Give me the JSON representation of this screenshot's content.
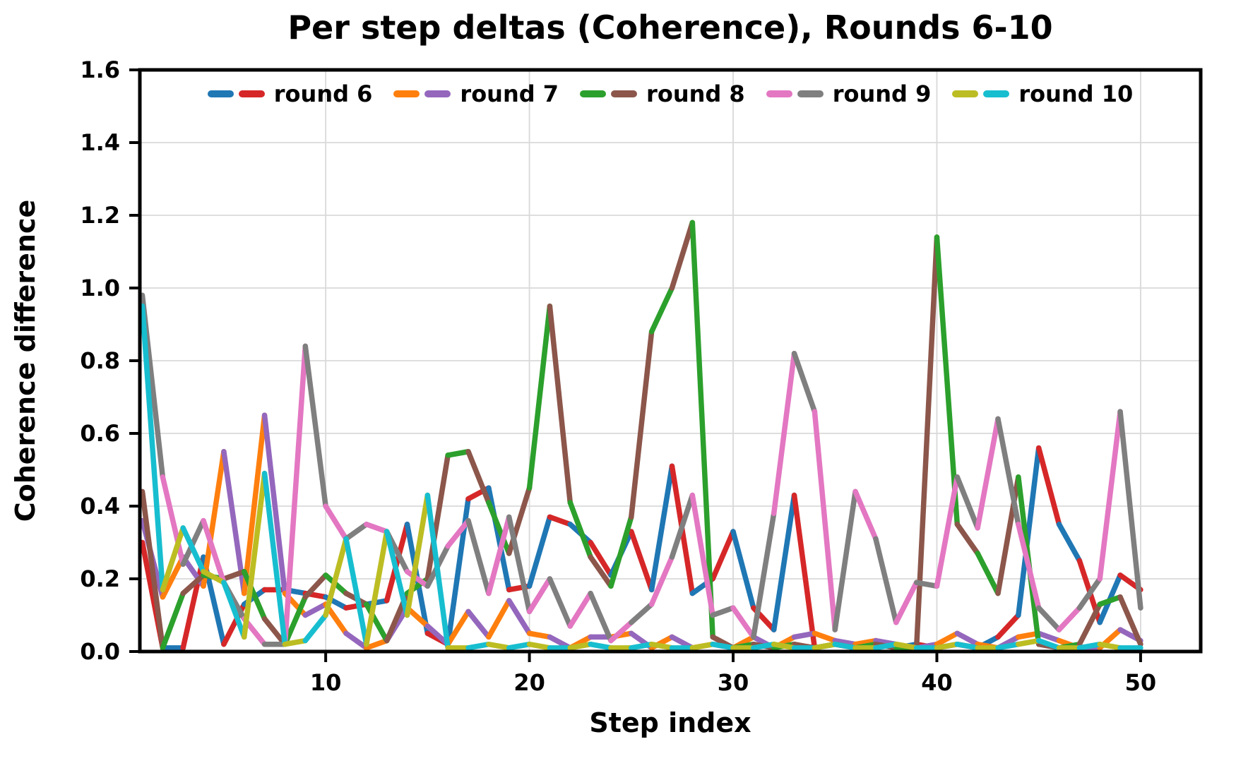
{
  "figure": {
    "background": "#ffffff",
    "text_color": "#000000",
    "grid_color": "#d9d9d9",
    "spine_color": "#000000"
  },
  "chart_data": {
    "type": "line",
    "title": "Per step deltas (Coherence), Rounds 6-10",
    "xlabel": "Step index",
    "ylabel": "Coherence difference",
    "xlim": [
      0.878,
      52.95
    ],
    "ylim": [
      0,
      1.6
    ],
    "xticks": [
      10,
      20,
      30,
      40,
      50
    ],
    "yticks": [
      0.0,
      0.2,
      0.4,
      0.6,
      0.8,
      1.0,
      1.2,
      1.4,
      1.6
    ],
    "grid": true,
    "legend_position": "top-center",
    "style": "each series is one polyline whose segments alternate between its two colors",
    "x": [
      1,
      2,
      3,
      4,
      5,
      6,
      7,
      8,
      9,
      10,
      11,
      12,
      13,
      14,
      15,
      16,
      17,
      18,
      19,
      20,
      21,
      22,
      23,
      24,
      25,
      26,
      27,
      28,
      29,
      30,
      31,
      32,
      33,
      34,
      35,
      36,
      37,
      38,
      39,
      40,
      41,
      42,
      43,
      44,
      45,
      46,
      47,
      48,
      49,
      50
    ],
    "series": [
      {
        "name": "round 6",
        "colors": [
          "#1f77b4",
          "#d62728"
        ],
        "values": [
          0.3,
          0.01,
          0.01,
          0.26,
          0.02,
          0.13,
          0.17,
          0.17,
          0.16,
          0.15,
          0.12,
          0.13,
          0.14,
          0.35,
          0.05,
          0.02,
          0.42,
          0.45,
          0.17,
          0.18,
          0.37,
          0.35,
          0.3,
          0.21,
          0.33,
          0.17,
          0.51,
          0.16,
          0.2,
          0.33,
          0.12,
          0.06,
          0.43,
          0.01,
          0.02,
          0.01,
          0.02,
          0.01,
          0.02,
          0.01,
          0.02,
          0.01,
          0.04,
          0.1,
          0.56,
          0.35,
          0.25,
          0.08,
          0.21,
          0.17
        ]
      },
      {
        "name": "round 7",
        "colors": [
          "#ff7f0e",
          "#9467bd"
        ],
        "values": [
          0.36,
          0.15,
          0.26,
          0.18,
          0.55,
          0.16,
          0.65,
          0.16,
          0.1,
          0.13,
          0.05,
          0.01,
          0.03,
          0.12,
          0.07,
          0.02,
          0.11,
          0.04,
          0.14,
          0.05,
          0.04,
          0.01,
          0.04,
          0.04,
          0.05,
          0.01,
          0.04,
          0.01,
          0.02,
          0.01,
          0.04,
          0.01,
          0.04,
          0.05,
          0.03,
          0.02,
          0.03,
          0.02,
          0.01,
          0.02,
          0.05,
          0.02,
          0.01,
          0.04,
          0.05,
          0.03,
          0.01,
          0.01,
          0.06,
          0.03
        ]
      },
      {
        "name": "round 8",
        "colors": [
          "#2ca02c",
          "#8c564b"
        ],
        "values": [
          0.44,
          0.01,
          0.16,
          0.21,
          0.2,
          0.22,
          0.09,
          0.02,
          0.15,
          0.21,
          0.16,
          0.13,
          0.03,
          0.16,
          0.2,
          0.54,
          0.55,
          0.41,
          0.27,
          0.45,
          0.95,
          0.41,
          0.26,
          0.18,
          0.37,
          0.88,
          1.0,
          1.18,
          0.04,
          0.01,
          0.02,
          0.01,
          0.02,
          0.01,
          0.02,
          0.01,
          0.02,
          0.01,
          0.01,
          1.14,
          0.35,
          0.27,
          0.16,
          0.48,
          0.02,
          0.01,
          0.02,
          0.13,
          0.15,
          0.02
        ]
      },
      {
        "name": "round 9",
        "colors": [
          "#e377c2",
          "#7f7f7f"
        ],
        "values": [
          0.98,
          0.48,
          0.24,
          0.36,
          0.19,
          0.09,
          0.02,
          0.02,
          0.84,
          0.4,
          0.31,
          0.35,
          0.33,
          0.22,
          0.18,
          0.29,
          0.36,
          0.16,
          0.37,
          0.11,
          0.2,
          0.07,
          0.16,
          0.03,
          0.08,
          0.13,
          0.26,
          0.43,
          0.1,
          0.12,
          0.04,
          0.38,
          0.82,
          0.66,
          0.06,
          0.44,
          0.31,
          0.08,
          0.19,
          0.18,
          0.48,
          0.34,
          0.64,
          0.35,
          0.12,
          0.06,
          0.12,
          0.2,
          0.66,
          0.12
        ]
      },
      {
        "name": "round 10",
        "colors": [
          "#bcbd22",
          "#17becf"
        ],
        "values": [
          0.95,
          0.17,
          0.34,
          0.22,
          0.19,
          0.04,
          0.49,
          0.02,
          0.03,
          0.1,
          0.31,
          0.02,
          0.33,
          0.1,
          0.43,
          0.01,
          0.01,
          0.02,
          0.01,
          0.02,
          0.01,
          0.01,
          0.02,
          0.01,
          0.01,
          0.02,
          0.01,
          0.01,
          0.02,
          0.01,
          0.01,
          0.02,
          0.01,
          0.01,
          0.02,
          0.01,
          0.01,
          0.02,
          0.01,
          0.01,
          0.02,
          0.01,
          0.01,
          0.02,
          0.03,
          0.01,
          0.01,
          0.02,
          0.01,
          0.01
        ]
      }
    ]
  }
}
